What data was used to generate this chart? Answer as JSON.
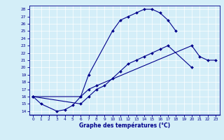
{
  "xlabel": "Graphe des températures (°C)",
  "background_color": "#d4eef8",
  "line_color": "#00008b",
  "xlim": [
    -0.5,
    23.5
  ],
  "ylim": [
    13.5,
    28.5
  ],
  "yticks": [
    14,
    15,
    16,
    17,
    18,
    19,
    20,
    21,
    22,
    23,
    24,
    25,
    26,
    27,
    28
  ],
  "xticks": [
    0,
    1,
    2,
    3,
    4,
    5,
    6,
    7,
    8,
    9,
    10,
    11,
    12,
    13,
    14,
    15,
    16,
    17,
    18,
    19,
    20,
    21,
    22,
    23
  ],
  "segments": {
    "s1": {
      "x": [
        0,
        1,
        3,
        4,
        5,
        6,
        7,
        10,
        11,
        12,
        13,
        14,
        15,
        16,
        17,
        18
      ],
      "y": [
        16,
        15,
        14,
        14.2,
        14.8,
        16,
        19,
        25,
        26.5,
        27,
        27.5,
        28,
        28,
        27.5,
        26.5,
        25
      ]
    },
    "s2": {
      "x": [
        0,
        6,
        7,
        8,
        20,
        21,
        22,
        23
      ],
      "y": [
        16,
        16,
        17,
        17.5,
        23,
        21.5,
        21,
        21
      ]
    },
    "s3": {
      "x": [
        0,
        6,
        7,
        8,
        9,
        10,
        11,
        12,
        13,
        14,
        15,
        16,
        17,
        20
      ],
      "y": [
        16,
        15,
        16,
        17,
        17.5,
        18.5,
        19.5,
        20.5,
        21,
        21.5,
        22,
        22.5,
        23,
        20
      ]
    }
  },
  "tick_labelsize": 4.2,
  "xlabel_fontsize": 5.5,
  "marker_size": 2.0,
  "linewidth": 0.8
}
